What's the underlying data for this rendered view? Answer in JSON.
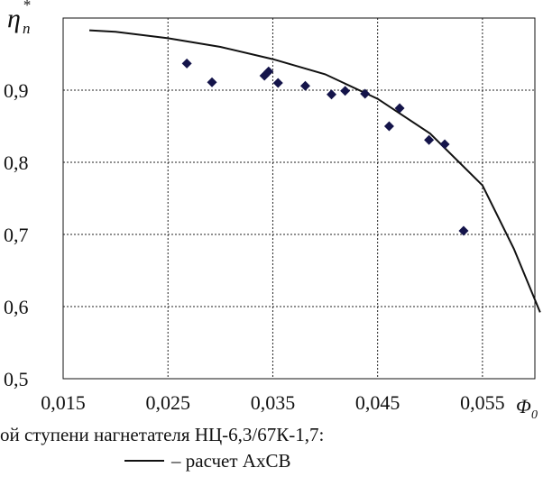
{
  "chart_data": {
    "type": "scatter",
    "xlabel": "Φ",
    "xlabel_sub": "0",
    "ylabel": "η",
    "ylabel_sub": "п",
    "ylabel_sup": "*",
    "xlim": [
      0.015,
      0.06
    ],
    "ylim": [
      0.5,
      1.0
    ],
    "x_ticks": [
      0.015,
      0.025,
      0.035,
      0.045,
      0.055
    ],
    "x_tick_labels": [
      "0,015",
      "0,025",
      "0,035",
      "0,045",
      "0,055"
    ],
    "y_ticks": [
      0.5,
      0.6,
      0.7,
      0.8,
      0.9
    ],
    "y_tick_labels": [
      "0,5",
      "0,6",
      "0,7",
      "0,8",
      "0,9"
    ],
    "grid": true,
    "series": [
      {
        "kind": "line",
        "x": [
          0.0175,
          0.02,
          0.025,
          0.03,
          0.035,
          0.04,
          0.045,
          0.05,
          0.055,
          0.058,
          0.0605
        ],
        "y": [
          0.983,
          0.981,
          0.972,
          0.96,
          0.943,
          0.922,
          0.888,
          0.84,
          0.768,
          0.68,
          0.592
        ]
      },
      {
        "kind": "markers",
        "x": [
          0.0268,
          0.0292,
          0.0342,
          0.0346,
          0.0355,
          0.0381,
          0.0406,
          0.0419,
          0.0438,
          0.0461,
          0.0471,
          0.0499,
          0.0514,
          0.0532
        ],
        "y": [
          0.937,
          0.911,
          0.92,
          0.926,
          0.91,
          0.906,
          0.894,
          0.899,
          0.895,
          0.85,
          0.875,
          0.831,
          0.825,
          0.705
        ]
      }
    ]
  },
  "caption": {
    "line1": "ой ступени нагнетателя НЦ-6,3/67К-1,7:",
    "legend_line_label": "– расчет АхСВ"
  }
}
